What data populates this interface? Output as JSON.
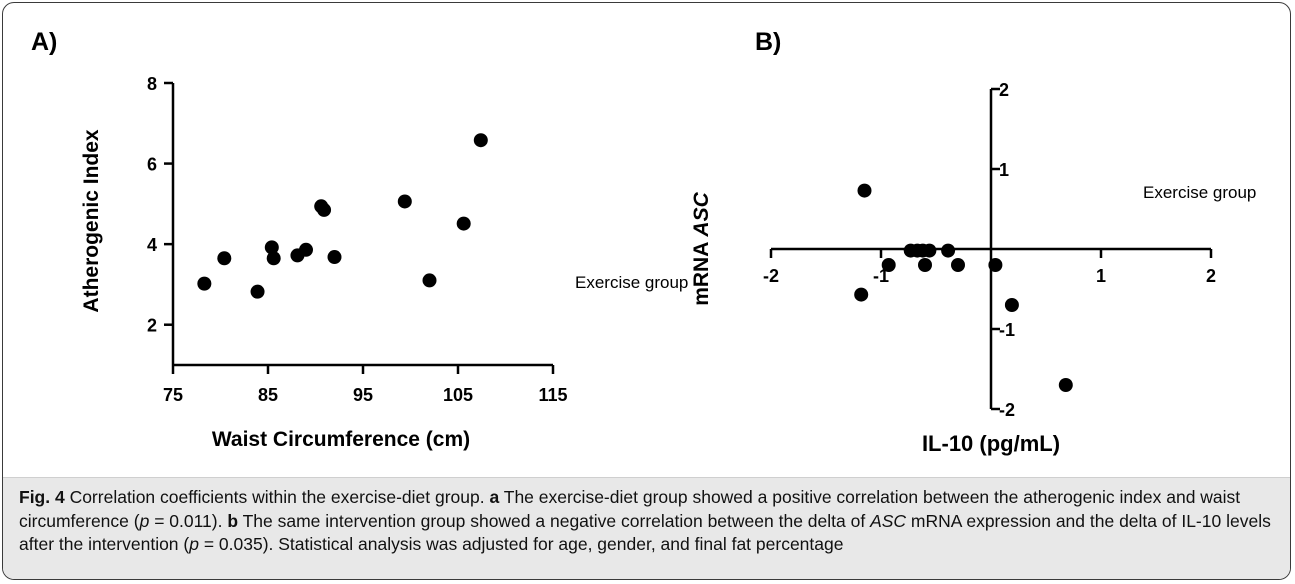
{
  "chart_data": [
    {
      "type": "scatter",
      "panel_label": "A)",
      "annotation": "Exercise group",
      "xlabel": "Waist Circumference (cm)",
      "ylabel": "Atherogenic Index",
      "xlim": [
        75,
        115
      ],
      "ylim": [
        1,
        8
      ],
      "xticks": [
        "75",
        "85",
        "95",
        "105",
        "115"
      ],
      "yticks": [
        "2",
        "4",
        "6",
        "8"
      ],
      "grid": false,
      "points": [
        {
          "x": 78.3,
          "y": 3.02
        },
        {
          "x": 80.4,
          "y": 3.65
        },
        {
          "x": 83.9,
          "y": 2.82
        },
        {
          "x": 85.4,
          "y": 3.92
        },
        {
          "x": 85.6,
          "y": 3.65
        },
        {
          "x": 88.1,
          "y": 3.72
        },
        {
          "x": 89.0,
          "y": 3.86
        },
        {
          "x": 90.6,
          "y": 4.94
        },
        {
          "x": 90.9,
          "y": 4.85
        },
        {
          "x": 92.0,
          "y": 3.68
        },
        {
          "x": 99.4,
          "y": 5.06
        },
        {
          "x": 102.0,
          "y": 3.1
        },
        {
          "x": 105.6,
          "y": 4.51
        },
        {
          "x": 107.4,
          "y": 6.58
        }
      ]
    },
    {
      "type": "scatter",
      "panel_label": "B)",
      "annotation": "Exercise group",
      "xlabel": "IL-10 (pg/mL)",
      "ylabel_parts": [
        "mRNA ",
        "ASC"
      ],
      "xlim": [
        -2,
        2
      ],
      "ylim": [
        -2,
        2
      ],
      "xticks": [
        "-2",
        "-1",
        "1",
        "2"
      ],
      "yticks": [
        "2",
        "1",
        "-1",
        "-2"
      ],
      "grid": false,
      "points": [
        {
          "x": -1.15,
          "y": 0.73
        },
        {
          "x": -1.18,
          "y": -0.57
        },
        {
          "x": -0.93,
          "y": -0.2
        },
        {
          "x": -0.73,
          "y": -0.02
        },
        {
          "x": -0.67,
          "y": -0.02
        },
        {
          "x": -0.62,
          "y": -0.02
        },
        {
          "x": -0.56,
          "y": -0.02
        },
        {
          "x": -0.6,
          "y": -0.2
        },
        {
          "x": -0.39,
          "y": -0.02
        },
        {
          "x": -0.3,
          "y": -0.2
        },
        {
          "x": 0.04,
          "y": -0.2
        },
        {
          "x": 0.19,
          "y": -0.7
        },
        {
          "x": 0.68,
          "y": -1.7
        }
      ]
    }
  ],
  "caption": {
    "fig_label": "Fig. 4",
    "title": " Correlation coefficients within the exercise-diet group. ",
    "a_label": "a",
    "a_text": " The exercise-diet group showed a positive correlation between the atherogenic index and waist circumference (",
    "a_p_var": "p",
    "a_p_val": " = 0.011). ",
    "b_label": "b",
    "b_text_1": " The same intervention group showed a negative correlation between the delta of ",
    "b_gene": "ASC",
    "b_text_2": " mRNA expression and the delta of IL-10 levels after the intervention (",
    "b_p_var": "p",
    "b_p_val": " = 0.035). Statistical analysis was adjusted for age, gender, and final fat percentage"
  }
}
